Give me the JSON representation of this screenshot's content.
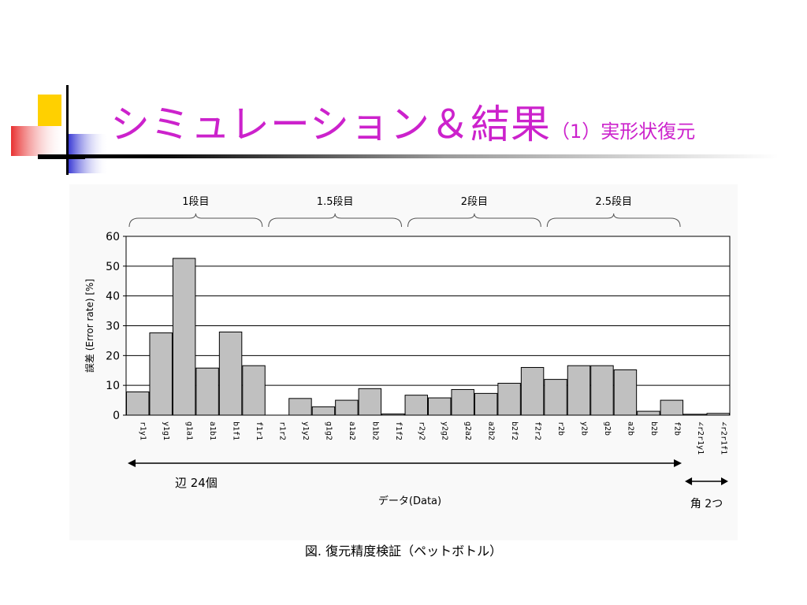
{
  "slide": {
    "title_main": "シミュレーション＆結果",
    "title_sub": "（1）実形状復元",
    "caption": "図. 復元精度検証（ペットボトル）"
  },
  "colors": {
    "title": "#cc22cc",
    "bar_fill": "#c0c0c0",
    "bar_stroke": "#000000"
  },
  "chart_data": {
    "type": "bar",
    "ylabel": "誤差 (Error rate) [%]",
    "xlabel": "データ(Data)",
    "ylim": [
      0,
      60
    ],
    "yticks": [
      0,
      10,
      20,
      30,
      40,
      50,
      60
    ],
    "grid": true,
    "categories": [
      "r1y1",
      "y1g1",
      "g1a1",
      "a1b1",
      "b1f1",
      "f1r1",
      "r1r2",
      "y1y2",
      "g1g2",
      "a1a2",
      "b1b2",
      "f1f2",
      "r2y2",
      "y2g2",
      "g2a2",
      "a2b2",
      "b2f2",
      "f2r2",
      "r2b",
      "y2b",
      "g2b",
      "a2b",
      "b2b",
      "f2b",
      "∠r2r1y1",
      "∠r2r1f1"
    ],
    "values": [
      7.8,
      27.6,
      52.6,
      15.8,
      27.9,
      16.6,
      0,
      5.6,
      2.8,
      5.0,
      8.9,
      0.4,
      6.7,
      5.8,
      8.6,
      7.3,
      10.7,
      16.0,
      12.0,
      16.6,
      16.6,
      15.2,
      1.3,
      5.0,
      0.3,
      0.6
    ],
    "groups": [
      {
        "label": "1段目"
      },
      {
        "label": "1.5段目"
      },
      {
        "label": "2段目"
      },
      {
        "label": "2.5段目"
      }
    ],
    "annotations": {
      "edges": "辺 24個",
      "angles": "角 2つ"
    }
  }
}
